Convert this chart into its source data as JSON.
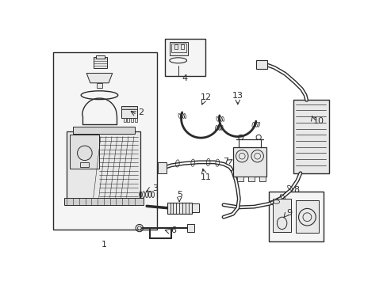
{
  "bg_color": "#ffffff",
  "line_color": "#2a2a2a",
  "fill_light": "#e8e8e8",
  "fill_lighter": "#f0f0f0",
  "fig_width": 4.89,
  "fig_height": 3.6,
  "dpi": 100
}
